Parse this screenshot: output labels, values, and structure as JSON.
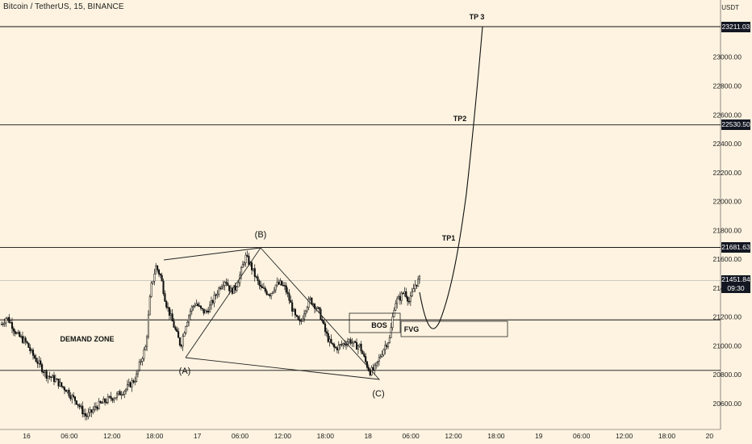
{
  "chart_data": {
    "type": "candlestick",
    "title": "Bitcoin / TetherUS, 15, BINANCE",
    "ylabel": "USDT",
    "ylim": [
      20400,
      23380
    ],
    "yticks": [
      20600,
      20800,
      21000,
      21200,
      21400,
      21600,
      21800,
      22000,
      22200,
      22400,
      22600,
      22800,
      23000
    ],
    "yticks_labels": [
      "20600.00",
      "20800.00",
      "21000.00",
      "21200.00",
      "21400.00",
      "21600.00",
      "21800.00",
      "22000.00",
      "22200.00",
      "22400.00",
      "22600.00",
      "22800.00",
      "23000.00"
    ],
    "x_ticks": [
      "16",
      "06:00",
      "12:00",
      "18:00",
      "17",
      "06:00",
      "12:00",
      "18:00",
      "18",
      "06:00",
      "12:00",
      "18:00",
      "19",
      "06:00",
      "12:00",
      "18:00",
      "20"
    ],
    "price_levels": [
      {
        "label": "23211.03",
        "value": 23211.03
      },
      {
        "label": "22530.50",
        "value": 22530.5
      },
      {
        "label": "21681.63",
        "value": 21681.63
      }
    ],
    "current_price": {
      "label": "21451.84",
      "value": 21451.84,
      "countdown": "09:30"
    },
    "zones": {
      "upper": 21180,
      "lower": 20830
    },
    "annotations": {
      "demand_zone": "DEMAND ZONE",
      "bos": "BOS",
      "fvg": "FVG",
      "tp1": "TP1",
      "tp2": "TP2",
      "tp3": "TP 3",
      "wave_a": "(A)",
      "wave_b": "(B)",
      "wave_c": "(C)"
    },
    "price_path": [
      21150,
      21200,
      21150,
      21080,
      21050,
      21020,
      20950,
      20900,
      20850,
      20800,
      20780,
      20760,
      20720,
      20700,
      20650,
      20620,
      20560,
      20510,
      20540,
      20580,
      20600,
      20620,
      20640,
      20650,
      20680,
      20700,
      20740,
      20780,
      20900,
      21000,
      21400,
      21550,
      21480,
      21300,
      21200,
      21100,
      21000,
      21150,
      21250,
      21300,
      21250,
      21230,
      21280,
      21350,
      21420,
      21460,
      21380,
      21400,
      21500,
      21620,
      21560,
      21480,
      21400,
      21380,
      21360,
      21420,
      21430,
      21400,
      21300,
      21200,
      21150,
      21260,
      21320,
      21280,
      21220,
      21100,
      21020,
      20980,
      21000,
      21020,
      21040,
      21000,
      21000,
      20900,
      20820,
      20840,
      20920,
      21000,
      21050,
      21300,
      21330,
      21380,
      21300,
      21420,
      21460
    ]
  }
}
